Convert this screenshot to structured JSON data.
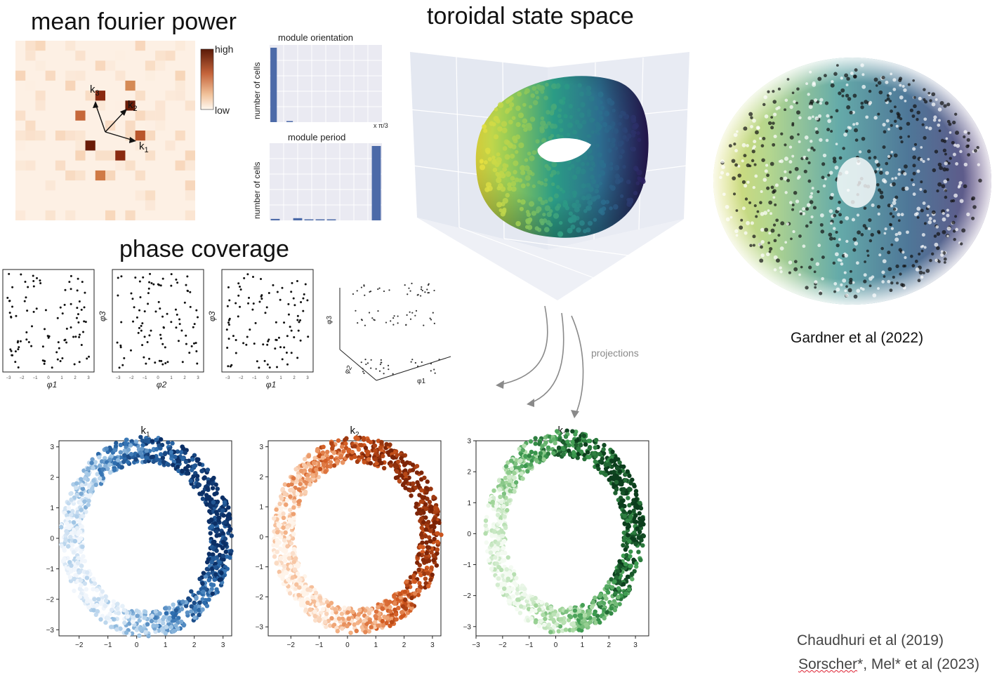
{
  "titles": {
    "fourier": "mean fourier power",
    "toroidal": "toroidal state space",
    "phase": "phase coverage"
  },
  "fourier": {
    "colorbar_high": "high",
    "colorbar_low": "low",
    "k_labels": [
      "k3",
      "k2",
      "k1"
    ]
  },
  "module_orientation": {
    "title": "module orientation",
    "ylabel": "number of cells",
    "xunit": "x π/3"
  },
  "module_period": {
    "title": "module period",
    "ylabel": "number of cells"
  },
  "phase_panels": {
    "xlabels": [
      "φ1",
      "φ2",
      "φ1"
    ],
    "ylabels": [
      "",
      "φ3",
      "φ3"
    ],
    "panel3d_labels": [
      "φ3",
      "φ2",
      "φ1"
    ]
  },
  "projections_label": "projections",
  "gardner_caption": "Gardner et al (2022)",
  "citations": {
    "line1": "Chaudhuri et al (2019)",
    "line2_a": "Sorscher",
    "line2_b": "*, Mel* et al (2023)"
  },
  "ring_panels": [
    {
      "title_base": "k",
      "title_sub": "1",
      "colors": [
        "#f1f6fc",
        "#9cc3e4",
        "#2f6fb0",
        "#0b2f66"
      ]
    },
    {
      "title_base": "k",
      "title_sub": "2",
      "colors": [
        "#fff4ea",
        "#f2ac7e",
        "#d2591f",
        "#7d2406"
      ]
    },
    {
      "title_base": "k",
      "title_sub": "3",
      "colors": [
        "#f4fbf2",
        "#a2d69b",
        "#3c9a4f",
        "#0b3d1c"
      ]
    }
  ],
  "ring_ticks": {
    "k1": {
      "x": [
        "−2",
        "−1",
        "0",
        "1",
        "2",
        "3"
      ],
      "y": [
        "3",
        "2",
        "1",
        "0",
        "−1",
        "−2",
        "−3"
      ]
    },
    "k2": {
      "x": [
        "−2",
        "−1",
        "0",
        "1",
        "2",
        "3"
      ],
      "y": [
        "3",
        "2",
        "1",
        "0",
        "−1",
        "−2",
        "−3"
      ]
    },
    "k3": {
      "x": [
        "−3",
        "−2",
        "−1",
        "0",
        "1",
        "2",
        "3"
      ],
      "y": [
        "3",
        "2",
        "1",
        "0",
        "−1",
        "−2",
        "−3"
      ]
    }
  },
  "chart_data": [
    {
      "type": "bar",
      "title": "module orientation",
      "ylabel": "number of cells",
      "xlabel": "x π/3",
      "values": [
        100,
        0,
        1,
        0,
        0,
        0,
        0,
        0,
        0,
        0,
        0,
        0,
        0,
        0
      ]
    },
    {
      "type": "bar",
      "title": "module period",
      "ylabel": "number of cells",
      "values": [
        2,
        0,
        3,
        1,
        1,
        1,
        0,
        0,
        0,
        100
      ]
    },
    {
      "type": "scatter",
      "title": "k1",
      "xlim": [
        -2.7,
        3.3
      ],
      "ylim": [
        -3.2,
        3.2
      ]
    },
    {
      "type": "scatter",
      "title": "k2",
      "xlim": [
        -2.8,
        3.3
      ],
      "ylim": [
        -3.3,
        3.2
      ]
    },
    {
      "type": "scatter",
      "title": "k3",
      "xlim": [
        -3.0,
        3.5
      ],
      "ylim": [
        -3.3,
        3.0
      ]
    }
  ]
}
